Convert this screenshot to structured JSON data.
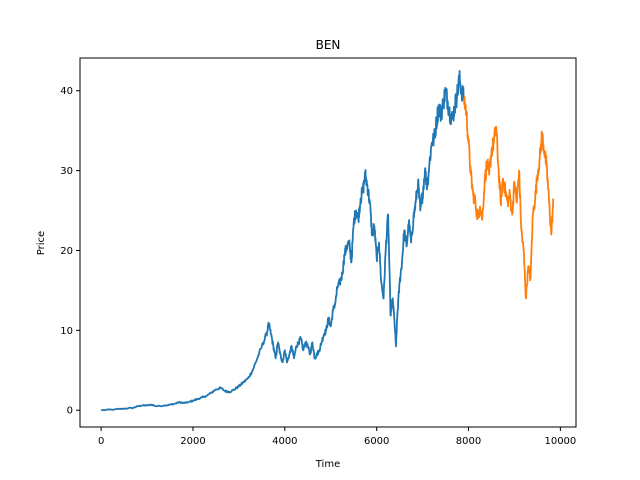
{
  "chart_data": {
    "type": "line",
    "title": "BEN",
    "xlabel": "Time",
    "ylabel": "Price",
    "xlim": [
      -460,
      10340
    ],
    "ylim": [
      -2.1,
      44.1
    ],
    "xticks": [
      0,
      2000,
      4000,
      6000,
      8000,
      10000
    ],
    "yticks": [
      0,
      10,
      20,
      30,
      40
    ],
    "grid": false,
    "legend": "none",
    "series": [
      {
        "color": "#1f77b4",
        "x": [
          0,
          300,
          500,
          700,
          800,
          900,
          1000,
          1100,
          1200,
          1400,
          1500,
          1600,
          1700,
          1800,
          1900,
          2000,
          2100,
          2200,
          2300,
          2400,
          2500,
          2600,
          2700,
          2800,
          2900,
          3000,
          3100,
          3200,
          3300,
          3400,
          3500,
          3600,
          3650,
          3700,
          3750,
          3800,
          3850,
          3900,
          3950,
          4000,
          4050,
          4100,
          4150,
          4200,
          4250,
          4300,
          4350,
          4400,
          4450,
          4500,
          4550,
          4600,
          4650,
          4700,
          4750,
          4800,
          4850,
          4900,
          4950,
          5000,
          5050,
          5100,
          5150,
          5200,
          5250,
          5300,
          5350,
          5400,
          5450,
          5500,
          5550,
          5600,
          5650,
          5700,
          5750,
          5800,
          5850,
          5900,
          5950,
          6000,
          6050,
          6100,
          6150,
          6200,
          6250,
          6300,
          6350,
          6400,
          6420,
          6450,
          6500,
          6550,
          6600,
          6650,
          6700,
          6750,
          6800,
          6850,
          6900,
          6950,
          7000,
          7050,
          7100,
          7150,
          7200,
          7250,
          7300,
          7350,
          7400,
          7450,
          7500,
          7550,
          7600,
          7650,
          7700,
          7750,
          7800,
          7850,
          7900
        ],
        "y": [
          0,
          0.1,
          0.2,
          0.3,
          0.5,
          0.6,
          0.6,
          0.7,
          0.5,
          0.6,
          0.7,
          0.8,
          1.0,
          0.9,
          1.0,
          1.2,
          1.4,
          1.6,
          1.8,
          2.2,
          2.6,
          2.8,
          2.4,
          2.3,
          2.6,
          3.0,
          3.5,
          4.0,
          5.0,
          6.5,
          8.0,
          9.5,
          10.8,
          9.5,
          8.0,
          6.5,
          8.5,
          7.0,
          6.0,
          7.5,
          6.0,
          7.0,
          8.0,
          6.5,
          8.0,
          8.5,
          9.0,
          7.5,
          8.5,
          8.0,
          7.0,
          8.5,
          6.5,
          7.0,
          7.5,
          8.5,
          9.5,
          10.0,
          11.5,
          10.5,
          12.5,
          13.5,
          15.5,
          16.0,
          17.0,
          19.5,
          20.5,
          21.0,
          18.5,
          23.5,
          25.0,
          24.0,
          26.5,
          27.5,
          29.5,
          28.0,
          26.0,
          22.0,
          23.0,
          19.0,
          21.0,
          16.0,
          14.0,
          20.5,
          24.5,
          12.0,
          14.0,
          10.0,
          8.0,
          12.0,
          16.0,
          18.5,
          22.5,
          20.5,
          23.5,
          21.0,
          24.0,
          26.0,
          28.5,
          25.0,
          27.0,
          30.0,
          28.0,
          31.0,
          33.5,
          34.0,
          36.0,
          38.0,
          37.0,
          38.5,
          40.0,
          38.5,
          37.0,
          36.5,
          38.0,
          39.5,
          41.5,
          40.0,
          39.0
        ]
      },
      {
        "color": "#ff7f0e",
        "x": [
          7900,
          7950,
          8000,
          8050,
          8100,
          8150,
          8200,
          8250,
          8300,
          8350,
          8400,
          8450,
          8500,
          8550,
          8600,
          8650,
          8700,
          8750,
          8800,
          8850,
          8900,
          8950,
          9000,
          9050,
          9100,
          9150,
          9200,
          9250,
          9300,
          9350,
          9400,
          9450,
          9500,
          9550,
          9600,
          9650,
          9700,
          9750,
          9800,
          9850
        ],
        "y": [
          39.0,
          37.5,
          33.5,
          29.5,
          27.0,
          26.0,
          24.0,
          25.5,
          24.0,
          28.5,
          31.0,
          29.5,
          32.5,
          33.5,
          35.5,
          30.5,
          26.0,
          29.0,
          27.5,
          26.0,
          27.0,
          24.5,
          28.5,
          26.0,
          30.0,
          22.5,
          20.0,
          14.0,
          18.0,
          16.5,
          24.5,
          26.5,
          29.5,
          31.5,
          34.5,
          32.5,
          30.5,
          26.5,
          22.0,
          26.5
        ]
      }
    ]
  }
}
